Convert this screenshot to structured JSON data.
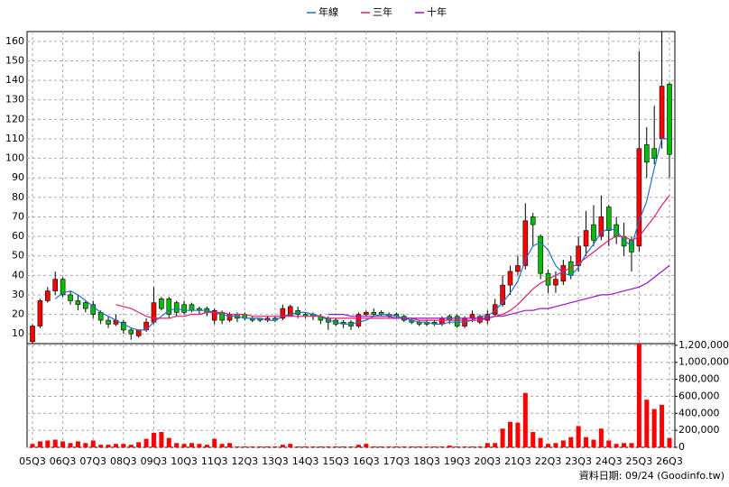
{
  "chart_data": {
    "type": "candlestick",
    "categories": [
      "05Q3",
      null,
      null,
      null,
      "06Q3",
      null,
      null,
      null,
      "07Q3",
      null,
      null,
      null,
      "08Q3",
      null,
      null,
      null,
      "09Q3",
      null,
      null,
      null,
      "10Q3",
      null,
      null,
      null,
      "11Q3",
      null,
      null,
      null,
      "12Q3",
      null,
      null,
      null,
      "13Q3",
      null,
      null,
      null,
      "14Q3",
      null,
      null,
      null,
      "15Q3",
      null,
      null,
      null,
      "16Q3",
      null,
      null,
      null,
      "17Q3",
      null,
      null,
      null,
      "18Q3",
      null,
      null,
      null,
      "19Q3",
      null,
      null,
      null,
      "20Q3",
      null,
      null,
      null,
      "21Q3",
      null,
      null,
      null,
      "22Q3",
      null,
      null,
      null,
      "23Q3",
      null,
      null,
      null,
      "24Q3",
      null,
      null,
      null,
      "25Q3",
      null,
      null,
      null,
      "26Q3"
    ],
    "ohlc": {
      "open": [
        6,
        14,
        27,
        32,
        38,
        30,
        27,
        26,
        25,
        21,
        17,
        15,
        16,
        12,
        9,
        12,
        16,
        28,
        28,
        26,
        25,
        25,
        23,
        23,
        17,
        21,
        17,
        20,
        20,
        18,
        18,
        17,
        18,
        18,
        19,
        22,
        20,
        20,
        19,
        18,
        17,
        16,
        16,
        14,
        20,
        21,
        21,
        20,
        20,
        19,
        17,
        16,
        16,
        16,
        15,
        19,
        19,
        14,
        18,
        16,
        17,
        20,
        25,
        35,
        42,
        45,
        70,
        60,
        41,
        35,
        37,
        47,
        45,
        55,
        66,
        60,
        75,
        66,
        60,
        58,
        55,
        107,
        105,
        110,
        138
      ],
      "high": [
        15,
        28,
        34,
        42,
        39,
        32,
        30,
        27,
        27,
        22,
        19,
        20,
        17,
        13,
        12,
        18,
        34,
        29,
        29,
        27,
        27,
        26,
        24,
        24,
        23,
        22,
        21,
        21,
        21,
        19,
        18,
        19,
        19,
        25,
        25,
        24,
        21,
        21,
        20,
        19,
        18,
        17,
        17,
        21,
        22,
        23,
        22,
        21,
        21,
        20,
        18,
        17,
        17,
        17,
        19,
        20,
        20,
        19,
        22,
        20,
        22,
        28,
        40,
        45,
        50,
        77,
        72,
        61,
        43,
        42,
        48,
        50,
        60,
        73,
        76,
        81,
        76,
        70,
        67,
        60,
        155,
        116,
        127,
        165,
        139
      ],
      "low": [
        5,
        13,
        26,
        30,
        29,
        25,
        22,
        21,
        18,
        15,
        13,
        14,
        10,
        7,
        8,
        11,
        15,
        22,
        18,
        19,
        20,
        21,
        20,
        19,
        15,
        15,
        16,
        16,
        17,
        16,
        16,
        16,
        16,
        17,
        19,
        18,
        18,
        17,
        15,
        12,
        14,
        13,
        12,
        13,
        19,
        19,
        19,
        18,
        18,
        16,
        15,
        14,
        14,
        14,
        14,
        15,
        13,
        13,
        16,
        15,
        15,
        19,
        24,
        30,
        40,
        43,
        55,
        38,
        31,
        31,
        35,
        38,
        42,
        50,
        55,
        58,
        55,
        56,
        50,
        42,
        52,
        90,
        97,
        105,
        90
      ],
      "close": [
        14,
        27,
        32,
        38,
        30,
        27,
        25,
        23,
        20,
        17,
        15,
        17,
        12,
        10,
        12,
        16,
        26,
        23,
        20,
        21,
        21,
        22,
        22,
        21,
        22,
        17,
        20,
        18,
        18,
        17,
        17,
        18,
        17,
        23,
        24,
        20,
        19,
        19,
        17,
        16,
        15,
        15,
        14,
        20,
        21,
        20,
        20,
        19,
        19,
        17,
        16,
        15,
        15,
        15,
        18,
        17,
        14,
        18,
        20,
        19,
        20,
        25,
        35,
        42,
        45,
        68,
        66,
        41,
        35,
        38,
        45,
        40,
        55,
        63,
        58,
        70,
        63,
        60,
        55,
        52,
        105,
        98,
        100,
        137,
        102
      ]
    },
    "up_color": "#ff0000",
    "down_color": "#00c000",
    "lines": [
      {
        "name": "年線",
        "color": "#1f6fd0",
        "values": [
          null,
          null,
          null,
          28,
          31,
          32,
          30,
          27,
          24,
          21,
          19,
          17,
          15,
          13,
          12,
          12,
          16,
          19,
          22,
          23,
          22,
          22,
          22,
          22,
          21,
          20,
          19,
          19,
          18,
          18,
          18,
          17,
          17,
          19,
          20,
          21,
          21,
          20,
          19,
          17,
          16,
          15,
          15,
          16,
          17,
          19,
          20,
          20,
          19,
          18,
          17,
          16,
          16,
          15,
          15,
          16,
          16,
          16,
          17,
          19,
          19,
          22,
          26,
          31,
          37,
          48,
          55,
          57,
          53,
          45,
          41,
          40,
          44,
          51,
          56,
          62,
          64,
          63,
          58,
          55,
          68,
          78,
          95,
          110,
          110
        ]
      },
      {
        "name": "三年",
        "color": "#e0206a",
        "values": [
          null,
          null,
          null,
          null,
          null,
          null,
          null,
          null,
          null,
          null,
          null,
          25,
          24,
          23,
          21,
          19,
          18,
          18,
          18,
          19,
          19,
          20,
          20,
          21,
          21,
          21,
          20,
          20,
          20,
          19,
          19,
          19,
          19,
          19,
          19,
          19,
          19,
          19,
          19,
          18,
          18,
          18,
          18,
          18,
          18,
          18,
          18,
          18,
          18,
          18,
          18,
          17,
          17,
          17,
          17,
          17,
          17,
          17,
          17,
          17,
          18,
          19,
          20,
          22,
          25,
          29,
          33,
          36,
          38,
          40,
          42,
          44,
          46,
          49,
          52,
          55,
          58,
          60,
          60,
          58,
          60,
          65,
          70,
          76,
          81
        ]
      },
      {
        "name": "十年",
        "color": "#9a10c8",
        "values": [
          null,
          null,
          null,
          null,
          null,
          null,
          null,
          null,
          null,
          null,
          null,
          null,
          null,
          null,
          null,
          null,
          null,
          null,
          null,
          null,
          null,
          null,
          null,
          null,
          null,
          null,
          null,
          null,
          null,
          null,
          null,
          null,
          null,
          null,
          null,
          null,
          null,
          null,
          null,
          20,
          20,
          20,
          19,
          19,
          19,
          19,
          19,
          19,
          18,
          18,
          18,
          18,
          18,
          18,
          18,
          18,
          18,
          18,
          18,
          18,
          18,
          19,
          19,
          20,
          21,
          22,
          22,
          23,
          23,
          24,
          25,
          26,
          27,
          28,
          29,
          30,
          30,
          31,
          32,
          33,
          34,
          36,
          39,
          42,
          45
        ]
      }
    ],
    "ylim": [
      5,
      165
    ],
    "yticks": [
      10,
      20,
      30,
      40,
      50,
      60,
      70,
      80,
      90,
      100,
      110,
      120,
      130,
      140,
      150,
      160
    ],
    "volume": {
      "color": "#ff0000",
      "values": [
        40000,
        70000,
        80000,
        90000,
        70000,
        50000,
        70000,
        50000,
        80000,
        30000,
        30000,
        40000,
        40000,
        30000,
        60000,
        100000,
        170000,
        180000,
        110000,
        50000,
        40000,
        50000,
        40000,
        30000,
        100000,
        40000,
        50000,
        10000,
        10000,
        10000,
        10000,
        10000,
        10000,
        30000,
        40000,
        10000,
        10000,
        10000,
        10000,
        10000,
        10000,
        10000,
        10000,
        30000,
        40000,
        10000,
        10000,
        10000,
        10000,
        10000,
        10000,
        10000,
        10000,
        10000,
        10000,
        20000,
        10000,
        10000,
        10000,
        10000,
        50000,
        50000,
        220000,
        300000,
        290000,
        640000,
        180000,
        110000,
        40000,
        50000,
        80000,
        120000,
        250000,
        120000,
        90000,
        220000,
        80000,
        40000,
        50000,
        50000,
        1220000,
        560000,
        450000,
        500000,
        110000
      ],
      "ylim": [
        0,
        1220000
      ],
      "yticks": [
        0,
        {
          "value": 200000,
          "label": "200,000"
        },
        {
          "value": 400000,
          "label": "400,000"
        },
        {
          "value": 600000,
          "label": "600,000"
        },
        {
          "value": 800000,
          "label": "800,000"
        },
        {
          "value": 1000000,
          "label": "1,000,000"
        },
        {
          "value": 1200000,
          "label": "1,200,000"
        }
      ]
    },
    "grid": true,
    "footnote": "資料日期: 09/24 (Goodinfo.tw)"
  }
}
